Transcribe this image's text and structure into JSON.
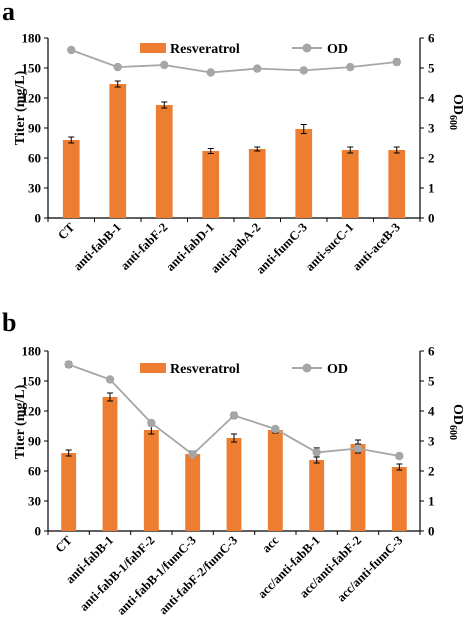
{
  "chart_data": [
    {
      "panel": "a",
      "type": "bar",
      "categories": [
        "CT",
        "anti-fabB-1",
        "anti-fabF-2",
        "anti-fabD-1",
        "anti-pabA-2",
        "anti-fumC-3",
        "anti-sucC-1",
        "anti-aceB-3"
      ],
      "series": [
        {
          "name": "Resveratrol",
          "type": "bar",
          "axis": "left",
          "color": "#ed7d31",
          "values": [
            78,
            134,
            113,
            67,
            69,
            89,
            68,
            68
          ],
          "errors": [
            3,
            3,
            3,
            2.5,
            2,
            4.5,
            3,
            3
          ]
        },
        {
          "name": "OD",
          "type": "line",
          "axis": "right",
          "color": "#a6a6a6",
          "values": [
            5.6,
            5.03,
            5.1,
            4.85,
            4.98,
            4.92,
            5.03,
            5.2
          ],
          "errors": [
            0.06,
            0.06,
            0.06,
            0.06,
            0.06,
            0.06,
            0.06,
            0.1
          ]
        }
      ],
      "ylabel": "Titer (mg/L)",
      "ylim": [
        0,
        180
      ],
      "yticks": [
        "0",
        "30",
        "60",
        "90",
        "120",
        "150",
        "180"
      ],
      "y2label": "OD",
      "y2sub": "600",
      "y2lim": [
        0,
        6
      ],
      "y2ticks": [
        "0",
        "1",
        "2",
        "3",
        "4",
        "5",
        "6"
      ],
      "legend": "top",
      "grid": false
    },
    {
      "panel": "b",
      "type": "bar",
      "categories": [
        "CT",
        "anti-fabB-1",
        "anti-fabB-1/fabF-2",
        "anti-fabB-1/fumC-3",
        "anti-fabF-2/fumC-3",
        "acc",
        "acc/anti-fabB-1",
        "acc/anti-fabF-2",
        "acc/anti-fumC-3"
      ],
      "series": [
        {
          "name": "Resveratrol",
          "type": "bar",
          "axis": "left",
          "color": "#ed7d31",
          "values": [
            78,
            134,
            101,
            77,
            93,
            101,
            71,
            87,
            64
          ],
          "errors": [
            3,
            4,
            4,
            3,
            4,
            3,
            3,
            4,
            3
          ]
        },
        {
          "name": "OD",
          "type": "line",
          "axis": "right",
          "color": "#a6a6a6",
          "values": [
            5.55,
            5.05,
            3.6,
            2.55,
            3.85,
            3.4,
            2.62,
            2.75,
            2.5
          ],
          "errors": [
            0.1,
            0.06,
            0.08,
            0.1,
            0.1,
            0.08,
            0.15,
            0.15,
            0.08
          ]
        }
      ],
      "ylabel": "Titer (mg/L)",
      "ylim": [
        0,
        180
      ],
      "yticks": [
        "0",
        "30",
        "60",
        "90",
        "120",
        "150",
        "180"
      ],
      "y2label": "OD",
      "y2sub": "600",
      "y2lim": [
        0,
        6
      ],
      "y2ticks": [
        "0",
        "1",
        "2",
        "3",
        "4",
        "5",
        "6"
      ],
      "legend": "top",
      "grid": false
    }
  ]
}
